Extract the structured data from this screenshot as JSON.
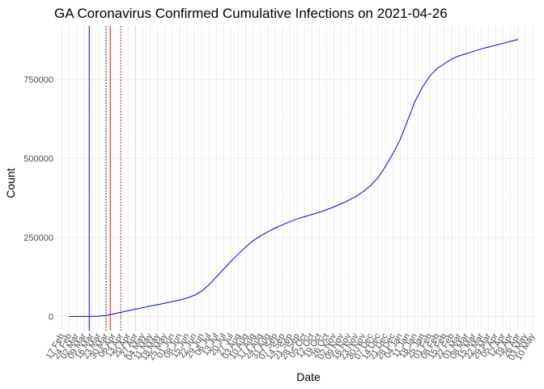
{
  "chart_data": {
    "type": "line",
    "title": "GA Coronavirus Confirmed Cumulative Infections on 2021-04-26",
    "xlabel": "Date",
    "ylabel": "Count",
    "ylim": [
      -45000,
      920000
    ],
    "x_range": [
      "2020-02-12",
      "2021-05-14"
    ],
    "y_ticks": [
      0,
      250000,
      500000,
      750000
    ],
    "y_tick_labels": [
      "0",
      "250000",
      "500000",
      "750000"
    ],
    "x_ticks": [
      {
        "date": "2020-02-17",
        "label": "17 Feb"
      },
      {
        "date": "2020-02-24",
        "label": "24 Feb"
      },
      {
        "date": "2020-03-02",
        "label": "02 Mar"
      },
      {
        "date": "2020-03-09",
        "label": "09 Mar"
      },
      {
        "date": "2020-03-16",
        "label": "16 Mar"
      },
      {
        "date": "2020-03-23",
        "label": "23 Mar"
      },
      {
        "date": "2020-03-30",
        "label": "30 Mar"
      },
      {
        "date": "2020-04-06",
        "label": "06 Apr"
      },
      {
        "date": "2020-04-13",
        "label": "13 Apr"
      },
      {
        "date": "2020-04-20",
        "label": "20 Apr"
      },
      {
        "date": "2020-04-27",
        "label": "27 Apr"
      },
      {
        "date": "2020-05-04",
        "label": "04 May"
      },
      {
        "date": "2020-05-11",
        "label": "11 May"
      },
      {
        "date": "2020-05-18",
        "label": "18 May"
      },
      {
        "date": "2020-05-25",
        "label": "25 May"
      },
      {
        "date": "2020-06-01",
        "label": "01 Jun"
      },
      {
        "date": "2020-06-08",
        "label": "08 Jun"
      },
      {
        "date": "2020-06-15",
        "label": "15 Jun"
      },
      {
        "date": "2020-06-22",
        "label": "22 Jun"
      },
      {
        "date": "2020-06-29",
        "label": "29 Jun"
      },
      {
        "date": "2020-07-06",
        "label": "06 Jul"
      },
      {
        "date": "2020-07-13",
        "label": "13 Jul"
      },
      {
        "date": "2020-07-20",
        "label": "20 Jul"
      },
      {
        "date": "2020-07-27",
        "label": "27 Jul"
      },
      {
        "date": "2020-08-03",
        "label": "03 Aug"
      },
      {
        "date": "2020-08-10",
        "label": "10 Aug"
      },
      {
        "date": "2020-08-17",
        "label": "17 Aug"
      },
      {
        "date": "2020-08-24",
        "label": "24 Aug"
      },
      {
        "date": "2020-08-31",
        "label": "31 Aug"
      },
      {
        "date": "2020-09-07",
        "label": "07 Sep"
      },
      {
        "date": "2020-09-14",
        "label": "14 Sep"
      },
      {
        "date": "2020-09-21",
        "label": "21 Sep"
      },
      {
        "date": "2020-09-28",
        "label": "28 Sep"
      },
      {
        "date": "2020-10-05",
        "label": "05 Oct"
      },
      {
        "date": "2020-10-12",
        "label": "12 Oct"
      },
      {
        "date": "2020-10-19",
        "label": "19 Oct"
      },
      {
        "date": "2020-10-26",
        "label": "26 Oct"
      },
      {
        "date": "2020-11-02",
        "label": "02 Nov"
      },
      {
        "date": "2020-11-09",
        "label": "09 Nov"
      },
      {
        "date": "2020-11-16",
        "label": "16 Nov"
      },
      {
        "date": "2020-11-23",
        "label": "23 Nov"
      },
      {
        "date": "2020-11-30",
        "label": "30 Nov"
      },
      {
        "date": "2020-12-07",
        "label": "07 Dec"
      },
      {
        "date": "2020-12-14",
        "label": "14 Dec"
      },
      {
        "date": "2020-12-21",
        "label": "21 Dec"
      },
      {
        "date": "2020-12-28",
        "label": "28 Dec"
      },
      {
        "date": "2021-01-04",
        "label": "04 Jan"
      },
      {
        "date": "2021-01-11",
        "label": "11 Jan"
      },
      {
        "date": "2021-01-18",
        "label": "18 Jan"
      },
      {
        "date": "2021-01-25",
        "label": "25 Jan"
      },
      {
        "date": "2021-02-01",
        "label": "01 Feb"
      },
      {
        "date": "2021-02-08",
        "label": "08 Feb"
      },
      {
        "date": "2021-02-15",
        "label": "15 Feb"
      },
      {
        "date": "2021-02-22",
        "label": "22 Feb"
      },
      {
        "date": "2021-03-01",
        "label": "01 Mar"
      },
      {
        "date": "2021-03-08",
        "label": "08 Mar"
      },
      {
        "date": "2021-03-15",
        "label": "15 Mar"
      },
      {
        "date": "2021-03-22",
        "label": "22 Mar"
      },
      {
        "date": "2021-03-29",
        "label": "29 Mar"
      },
      {
        "date": "2021-04-05",
        "label": "05 Apr"
      },
      {
        "date": "2021-04-12",
        "label": "12 Apr"
      },
      {
        "date": "2021-04-19",
        "label": "19 Apr"
      },
      {
        "date": "2021-04-26",
        "label": "26 Apr"
      },
      {
        "date": "2021-05-03",
        "label": "03 May"
      },
      {
        "date": "2021-05-10",
        "label": "10 May"
      }
    ],
    "grid": true,
    "legend": "none",
    "series": [
      {
        "color": "#0000ff",
        "points": [
          [
            "2020-02-24",
            0
          ],
          [
            "2020-03-02",
            0
          ],
          [
            "2020-03-09",
            100
          ],
          [
            "2020-03-16",
            200
          ],
          [
            "2020-03-23",
            1000
          ],
          [
            "2020-03-30",
            3000
          ],
          [
            "2020-04-06",
            8000
          ],
          [
            "2020-04-13",
            13000
          ],
          [
            "2020-04-20",
            18000
          ],
          [
            "2020-04-27",
            23000
          ],
          [
            "2020-05-04",
            28000
          ],
          [
            "2020-05-11",
            33000
          ],
          [
            "2020-05-18",
            37000
          ],
          [
            "2020-05-25",
            42000
          ],
          [
            "2020-06-01",
            47000
          ],
          [
            "2020-06-08",
            52000
          ],
          [
            "2020-06-15",
            58000
          ],
          [
            "2020-06-22",
            67000
          ],
          [
            "2020-06-29",
            80000
          ],
          [
            "2020-07-06",
            100000
          ],
          [
            "2020-07-13",
            125000
          ],
          [
            "2020-07-20",
            150000
          ],
          [
            "2020-07-27",
            175000
          ],
          [
            "2020-08-03",
            198000
          ],
          [
            "2020-08-10",
            220000
          ],
          [
            "2020-08-17",
            240000
          ],
          [
            "2020-08-24",
            255000
          ],
          [
            "2020-08-31",
            268000
          ],
          [
            "2020-09-07",
            280000
          ],
          [
            "2020-09-14",
            290000
          ],
          [
            "2020-09-21",
            300000
          ],
          [
            "2020-09-28",
            309000
          ],
          [
            "2020-10-05",
            316000
          ],
          [
            "2020-10-12",
            323000
          ],
          [
            "2020-10-19",
            330000
          ],
          [
            "2020-10-26",
            338000
          ],
          [
            "2020-11-02",
            347000
          ],
          [
            "2020-11-09",
            357000
          ],
          [
            "2020-11-16",
            368000
          ],
          [
            "2020-11-23",
            380000
          ],
          [
            "2020-11-30",
            396000
          ],
          [
            "2020-12-07",
            415000
          ],
          [
            "2020-12-14",
            440000
          ],
          [
            "2020-12-21",
            475000
          ],
          [
            "2020-12-28",
            515000
          ],
          [
            "2021-01-04",
            560000
          ],
          [
            "2021-01-11",
            620000
          ],
          [
            "2021-01-18",
            680000
          ],
          [
            "2021-01-25",
            725000
          ],
          [
            "2021-02-01",
            760000
          ],
          [
            "2021-02-08",
            785000
          ],
          [
            "2021-02-15",
            800000
          ],
          [
            "2021-02-22",
            815000
          ],
          [
            "2021-03-01",
            825000
          ],
          [
            "2021-03-08",
            832000
          ],
          [
            "2021-03-15",
            840000
          ],
          [
            "2021-03-22",
            847000
          ],
          [
            "2021-03-29",
            853000
          ],
          [
            "2021-04-05",
            859000
          ],
          [
            "2021-04-12",
            865000
          ],
          [
            "2021-04-19",
            871000
          ],
          [
            "2021-04-26",
            877000
          ]
        ]
      }
    ],
    "reference_lines": [
      {
        "date": "2020-03-14",
        "color": "#0000ff",
        "style": "solid"
      },
      {
        "date": "2020-03-30",
        "color": "#000000",
        "style": "dotted"
      },
      {
        "date": "2020-04-03",
        "color": "#ff0000",
        "style": "solid"
      },
      {
        "date": "2020-04-13",
        "color": "#8b0000",
        "style": "dotted"
      },
      {
        "date": "2020-04-27",
        "color": "#ffaaaa",
        "style": "dotted"
      }
    ]
  }
}
